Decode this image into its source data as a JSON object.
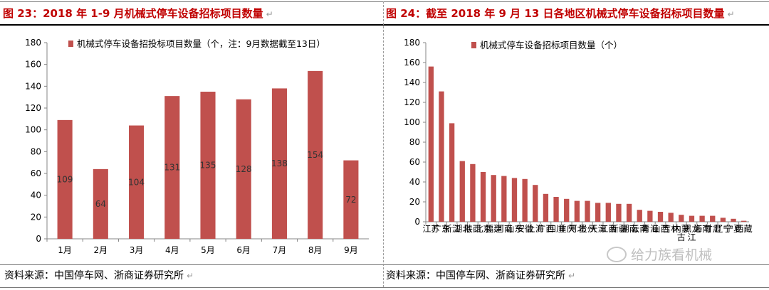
{
  "left_panel": {
    "title": "图 23：2018 年 1-9 月机械式停车设备招标项目数量",
    "title_mark": "↵",
    "source": "资料来源：中国停车网、浙商证券研究所",
    "source_mark": "↵"
  },
  "right_panel": {
    "title": "图 24：截至 2018 年 9 月 13 日各地区机械式停车设备招标项目数量",
    "title_mark": "↵",
    "source": "资料来源：中国停车网、浙商证券研究所",
    "source_mark": "↵"
  },
  "watermark": {
    "text": "给力族看机械"
  },
  "colors": {
    "bar": "#c0504d",
    "axis": "#868686"
  },
  "chart_data": [
    {
      "type": "bar",
      "title": "",
      "legend": "机械式停车设备招投标项目数量（个，注：9月数据截至13日）",
      "categories": [
        "1月",
        "2月",
        "3月",
        "4月",
        "5月",
        "6月",
        "7月",
        "8月",
        "9月"
      ],
      "values": [
        109,
        64,
        104,
        131,
        135,
        128,
        138,
        154,
        72
      ],
      "data_labels": [
        "109",
        "64",
        "104",
        "131",
        "135",
        "128",
        "138",
        "154",
        "72"
      ],
      "yticks": [
        "0",
        "20",
        "40",
        "60",
        "80",
        "100",
        "120",
        "140",
        "160",
        "180"
      ],
      "ylim": [
        0,
        180
      ],
      "xlabel": "",
      "ylabel": "",
      "grid": false
    },
    {
      "type": "bar",
      "title": "",
      "legend": "机械式停车设备招标项目数量（个）",
      "categories": [
        "江苏",
        "广东",
        "浙江",
        "湖北",
        "陕西",
        "北京",
        "福建",
        "河南",
        "山东",
        "安徽",
        "上海",
        "广西",
        "四川",
        "重庆",
        "河北",
        "贵州",
        "天津",
        "江西",
        "新疆",
        "湖南",
        "云南",
        "青海",
        "山西",
        "吉林",
        "内蒙古",
        "黑龙江",
        "海南",
        "甘肃",
        "辽宁",
        "宁夏",
        "西藏"
      ],
      "values": [
        156,
        131,
        99,
        61,
        58,
        50,
        47,
        46,
        44,
        43,
        37,
        28,
        25,
        23,
        21,
        21,
        19,
        19,
        18,
        18,
        12,
        11,
        10,
        9,
        7,
        6,
        6,
        6,
        4,
        3,
        1
      ],
      "yticks": [
        "0",
        "20",
        "40",
        "60",
        "80",
        "100",
        "120",
        "140",
        "160",
        "180"
      ],
      "ylim": [
        0,
        180
      ],
      "xlabel": "",
      "ylabel": "",
      "grid": false
    }
  ]
}
